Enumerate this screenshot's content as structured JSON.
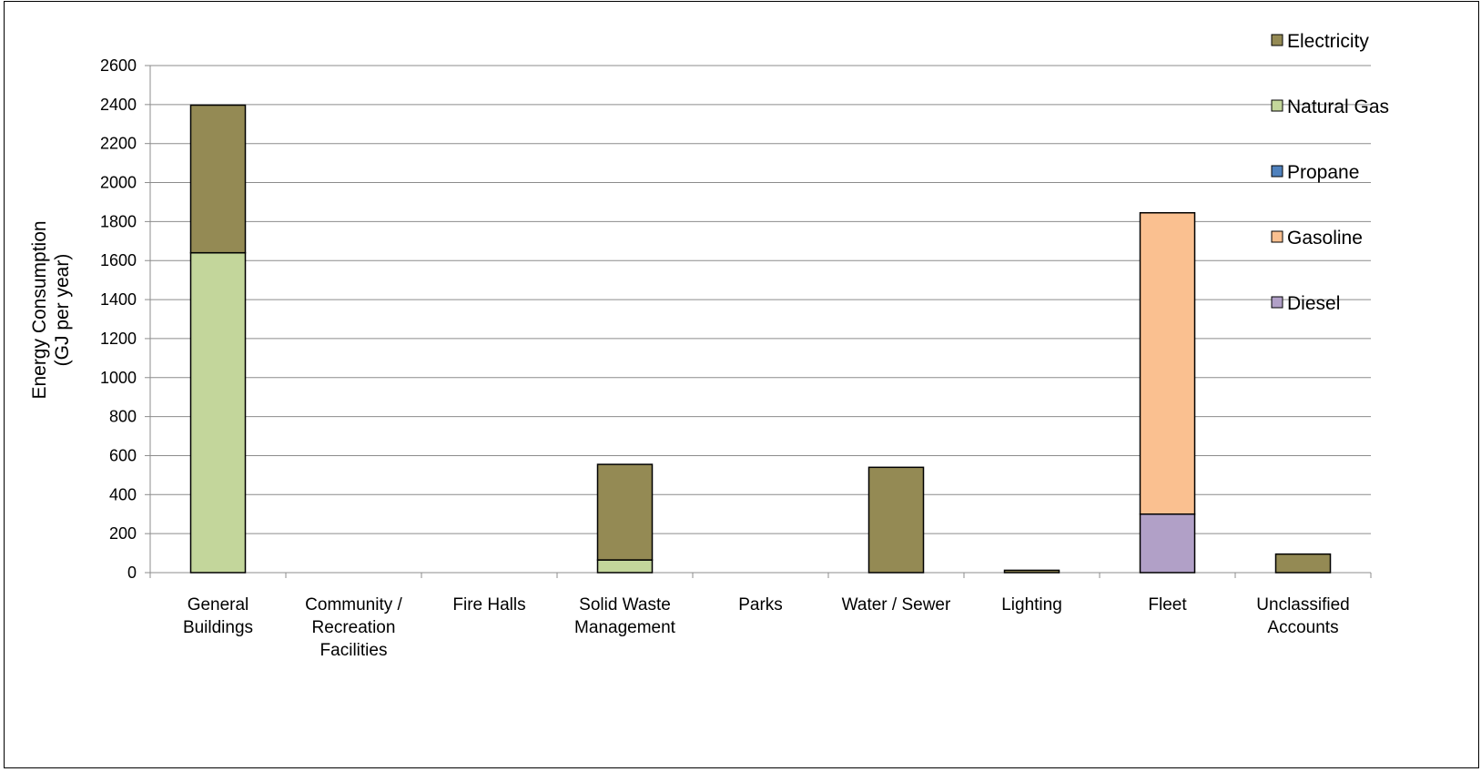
{
  "chart_data": {
    "type": "bar",
    "stacked": true,
    "title": "",
    "xlabel": "",
    "ylabel_lines": [
      "Energy Consumption",
      "(GJ per year)"
    ],
    "ylim": [
      0,
      2600
    ],
    "yticks": [
      0,
      200,
      400,
      600,
      800,
      1000,
      1200,
      1400,
      1600,
      1800,
      2000,
      2200,
      2400,
      2600
    ],
    "grid": true,
    "legend_position": "right",
    "categories": [
      [
        "General",
        "Buildings"
      ],
      [
        "Community /",
        "Recreation",
        "Facilities"
      ],
      [
        "Fire Halls"
      ],
      [
        "Solid Waste",
        "Management"
      ],
      [
        "Parks"
      ],
      [
        "Water / Sewer"
      ],
      [
        "Lighting"
      ],
      [
        "Fleet"
      ],
      [
        "Unclassified",
        "Accounts"
      ]
    ],
    "series": [
      {
        "name": "Diesel",
        "color": "#b1a0c7",
        "values": [
          0,
          0,
          0,
          0,
          0,
          0,
          0,
          300,
          0
        ]
      },
      {
        "name": "Gasoline",
        "color": "#fac090",
        "values": [
          0,
          0,
          0,
          0,
          0,
          0,
          0,
          1545,
          0
        ]
      },
      {
        "name": "Propane",
        "color": "#4f81bd",
        "values": [
          0,
          0,
          0,
          0,
          0,
          0,
          0,
          0,
          0
        ]
      },
      {
        "name": "Natural Gas",
        "color": "#c3d69b",
        "values": [
          1640,
          0,
          0,
          65,
          0,
          0,
          0,
          0,
          0
        ]
      },
      {
        "name": "Electricity",
        "color": "#948a54",
        "values": [
          757,
          0,
          0,
          490,
          0,
          540,
          12,
          0,
          95
        ]
      }
    ],
    "legend_order": [
      "Electricity",
      "Natural Gas",
      "Propane",
      "Gasoline",
      "Diesel"
    ]
  }
}
